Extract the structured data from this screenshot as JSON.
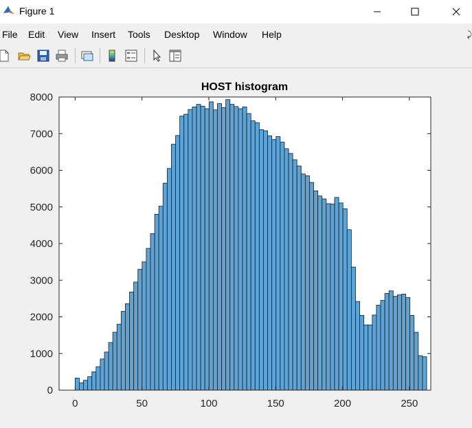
{
  "window": {
    "title": "Figure 1",
    "icons": {
      "app": "matlab-logo-icon",
      "minimize": "minimize-icon",
      "maximize": "maximize-icon",
      "close": "close-icon"
    }
  },
  "menu": {
    "items": [
      "File",
      "Edit",
      "View",
      "Insert",
      "Tools",
      "Desktop",
      "Window",
      "Help"
    ],
    "right_icon": "undock-arrow-icon"
  },
  "toolbar": {
    "buttons": [
      "new-figure-icon",
      "open-file-icon",
      "save-icon",
      "print-icon",
      "link-plot-icon",
      "colorbar-icon",
      "legend-icon",
      "pointer-icon",
      "property-inspector-icon"
    ]
  },
  "colors": {
    "bar_fill": "#5ea3d6",
    "bar_edge": "#1a1a1a",
    "axes_bg": "#ffffff",
    "figure_bg": "#f0f0f0"
  },
  "chart_data": {
    "type": "bar",
    "title": "HOST histogram",
    "xlabel": "",
    "ylabel": "",
    "bin_width": 3.13,
    "bin_start": 0,
    "x_ticks": [
      0,
      50,
      100,
      150,
      200,
      250
    ],
    "y_ticks": [
      0,
      1000,
      2000,
      3000,
      4000,
      5000,
      6000,
      7000,
      8000
    ],
    "xlim": [
      -12,
      266
    ],
    "ylim": [
      0,
      8000
    ],
    "grid": false,
    "values": [
      330,
      200,
      270,
      370,
      500,
      640,
      850,
      1040,
      1300,
      1580,
      1800,
      2150,
      2360,
      2680,
      2950,
      3300,
      3500,
      3870,
      4270,
      4800,
      5020,
      5650,
      6050,
      6710,
      6950,
      7480,
      7530,
      7660,
      7730,
      7800,
      7750,
      7680,
      7870,
      7650,
      7820,
      7710,
      7930,
      7800,
      7740,
      7680,
      7730,
      7550,
      7350,
      7300,
      7110,
      7080,
      6940,
      6840,
      6920,
      6770,
      6590,
      6460,
      6290,
      6120,
      5900,
      5850,
      5670,
      5440,
      5300,
      5220,
      5090,
      5080,
      5260,
      5110,
      4950,
      4380,
      3360,
      2420,
      2040,
      1780,
      1780,
      2050,
      2320,
      2450,
      2640,
      2710,
      2560,
      2600,
      2620,
      2530,
      2040,
      1580,
      940,
      910
    ]
  }
}
